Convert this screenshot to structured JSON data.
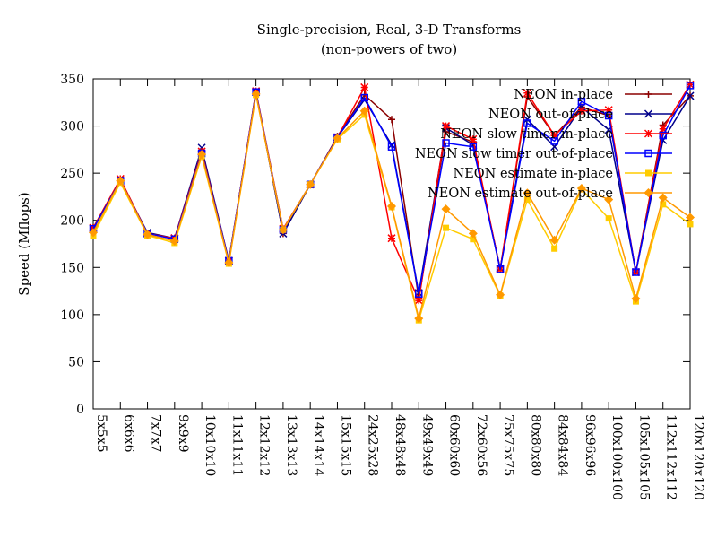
{
  "chart_data": {
    "type": "line",
    "title": "Single-precision, Real, 3-D Transforms",
    "subtitle": "(non-powers of two)",
    "xlabel": "",
    "ylabel": "Speed (Mflops)",
    "ylim": [
      0,
      350
    ],
    "yticks": [
      0,
      50,
      100,
      150,
      200,
      250,
      300,
      350
    ],
    "grid": false,
    "legend_position": "top-right",
    "categories": [
      "5x5x5",
      "6x6x6",
      "7x7x7",
      "9x9x9",
      "10x10x10",
      "11x11x11",
      "12x12x12",
      "13x13x13",
      "14x14x14",
      "15x15x15",
      "24x25x28",
      "48x48x48",
      "49x49x49",
      "60x60x60",
      "72x60x56",
      "75x75x75",
      "80x80x80",
      "84x84x84",
      "96x96x96",
      "100x100x100",
      "105x105x105",
      "112x112x112",
      "120x120x120"
    ],
    "series": [
      {
        "name": "NEON in-place",
        "color": "#8b0000",
        "marker": "plus",
        "values": [
          192,
          243,
          186,
          181,
          272,
          157,
          336,
          186,
          238,
          289,
          333,
          307,
          117,
          294,
          283,
          148,
          331,
          290,
          320,
          311,
          145,
          301,
          332
        ]
      },
      {
        "name": "NEON out-of-place",
        "color": "#00008b",
        "marker": "cross",
        "values": [
          191,
          242,
          187,
          181,
          277,
          157,
          336,
          186,
          238,
          288,
          328,
          280,
          123,
          298,
          280,
          149,
          307,
          278,
          320,
          296,
          145,
          285,
          332
        ]
      },
      {
        "name": "NEON slow timer in-place",
        "color": "#ff0000",
        "marker": "star",
        "values": [
          192,
          244,
          186,
          181,
          273,
          157,
          337,
          191,
          238,
          288,
          341,
          181,
          115,
          300,
          286,
          148,
          335,
          290,
          316,
          317,
          145,
          297,
          344
        ]
      },
      {
        "name": "NEON slow timer out-of-place",
        "color": "#0000ff",
        "marker": "square",
        "values": [
          191,
          242,
          186,
          180,
          271,
          157,
          336,
          190,
          238,
          288,
          330,
          278,
          122,
          282,
          278,
          148,
          303,
          284,
          326,
          311,
          145,
          290,
          343
        ]
      },
      {
        "name": "NEON estimate in-place",
        "color": "#ffcc00",
        "marker": "filled-square",
        "values": [
          184,
          240,
          184,
          176,
          268,
          154,
          333,
          190,
          238,
          286,
          312,
          214,
          94,
          192,
          180,
          120,
          222,
          170,
          233,
          202,
          114,
          217,
          196
        ]
      },
      {
        "name": "NEON estimate out-of-place",
        "color": "#ff9900",
        "marker": "filled-diamond",
        "values": [
          187,
          242,
          185,
          178,
          270,
          155,
          334,
          190,
          238,
          287,
          316,
          215,
          96,
          212,
          186,
          121,
          229,
          179,
          234,
          222,
          117,
          224,
          203
        ]
      }
    ]
  }
}
